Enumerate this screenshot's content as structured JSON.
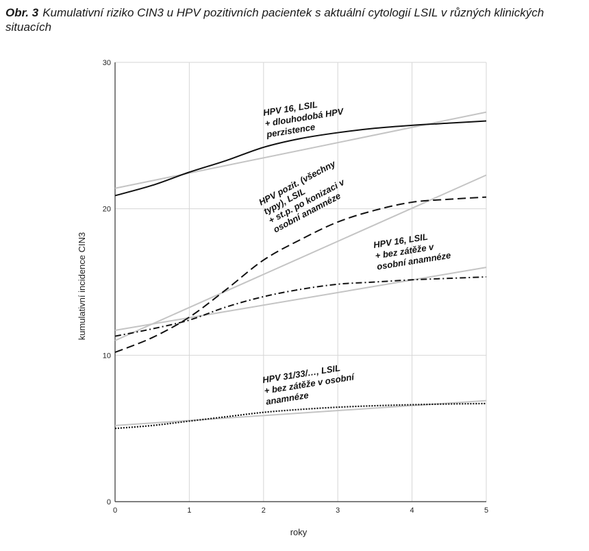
{
  "caption": {
    "label": "Obr. 3",
    "text": "Kumulativní riziko CIN3 u HPV pozitivních pacientek s aktuální cytologií LSIL v různých klinických situacích"
  },
  "chart_data": {
    "type": "line",
    "xlabel": "roky",
    "ylabel": "kumulativní incidence CIN3",
    "xlim": [
      0,
      5
    ],
    "ylim": [
      0,
      30
    ],
    "xticks": [
      0,
      1,
      2,
      3,
      4,
      5
    ],
    "yticks": [
      0,
      10,
      20,
      30
    ],
    "grid": true,
    "x": [
      0,
      0.5,
      1,
      1.5,
      2,
      2.5,
      3,
      3.5,
      4,
      4.5,
      5
    ],
    "series": [
      {
        "key": "hpv16_persistence",
        "style": "solid",
        "color": "#111111",
        "annotation": [
          "HPV 16, LSIL",
          "+ dlouhodobá HPV",
          "perzistence"
        ],
        "values": [
          20.9,
          21.6,
          22.5,
          23.3,
          24.2,
          24.8,
          25.2,
          25.5,
          25.7,
          25.85,
          26.0
        ],
        "trend": [
          21.4,
          26.6
        ]
      },
      {
        "key": "hpv_all_conization",
        "style": "dashed",
        "color": "#111111",
        "annotation": [
          "HPV pozit. (všechny",
          "typy), LSIL",
          "+ st.p. po konizaci v",
          "osobní anamnéze"
        ],
        "values": [
          10.2,
          11.2,
          12.6,
          14.5,
          16.5,
          17.9,
          19.1,
          19.9,
          20.45,
          20.65,
          20.8
        ],
        "trend": [
          11.0,
          22.3
        ]
      },
      {
        "key": "hpv16_no_burden",
        "style": "dashdot",
        "color": "#111111",
        "annotation": [
          "HPV 16, LSIL",
          "+ bez zátěže v",
          "osobní anamnéze"
        ],
        "values": [
          11.3,
          11.8,
          12.4,
          13.3,
          14.0,
          14.5,
          14.85,
          15.0,
          15.15,
          15.25,
          15.35
        ],
        "trend": [
          11.7,
          16.0
        ]
      },
      {
        "key": "hpv31_33_no_burden",
        "style": "dotted",
        "color": "#111111",
        "annotation": [
          "HPV 31/33/…, LSIL",
          "+ bez zátěže v osobní",
          "anamnéze"
        ],
        "values": [
          5.0,
          5.2,
          5.5,
          5.8,
          6.1,
          6.3,
          6.45,
          6.55,
          6.62,
          6.67,
          6.7
        ],
        "trend": [
          5.2,
          6.9
        ]
      }
    ]
  }
}
